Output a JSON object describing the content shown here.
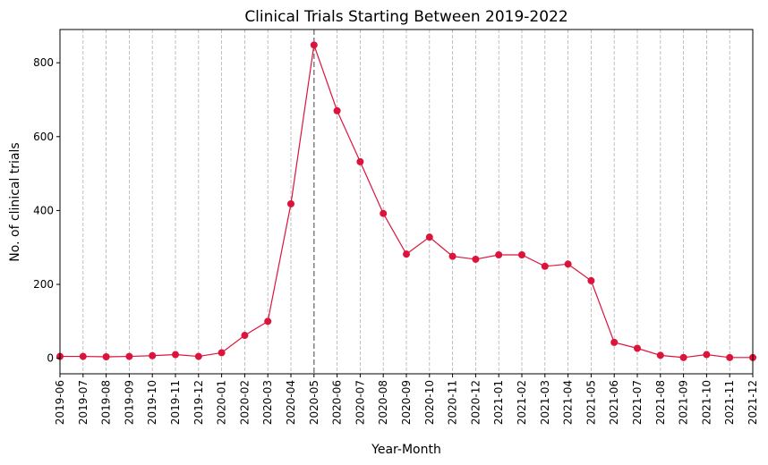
{
  "chart_data": {
    "type": "line",
    "title": "Clinical Trials Starting Between 2019-2022",
    "xlabel": "Year-Month",
    "ylabel": "No. of clinical trials",
    "categories": [
      "2019-06",
      "2019-07",
      "2019-08",
      "2019-09",
      "2019-10",
      "2019-11",
      "2019-12",
      "2020-01",
      "2020-02",
      "2020-03",
      "2020-04",
      "2020-05",
      "2020-06",
      "2020-07",
      "2020-08",
      "2020-09",
      "2020-10",
      "2020-11",
      "2020-12",
      "2021-01",
      "2021-02",
      "2021-03",
      "2021-04",
      "2021-05",
      "2021-06",
      "2021-07",
      "2021-08",
      "2021-09",
      "2021-10",
      "2021-11",
      "2021-12"
    ],
    "series": [
      {
        "values": [
          5,
          5,
          4,
          5,
          7,
          10,
          5,
          15,
          62,
          100,
          418,
          848,
          670,
          532,
          392,
          282,
          328,
          276,
          268,
          280,
          280,
          249,
          255,
          210,
          43,
          27,
          8,
          2,
          10,
          2,
          2
        ]
      }
    ],
    "ylim": [
      -42,
      890
    ],
    "yticks": [
      0,
      200,
      400,
      600,
      800
    ],
    "highlight_category": "2020-05",
    "grid": "vertical dashed",
    "line_color": "#dc143c",
    "grid_color": "#b0b0b0",
    "highlight_color": "#808080"
  }
}
